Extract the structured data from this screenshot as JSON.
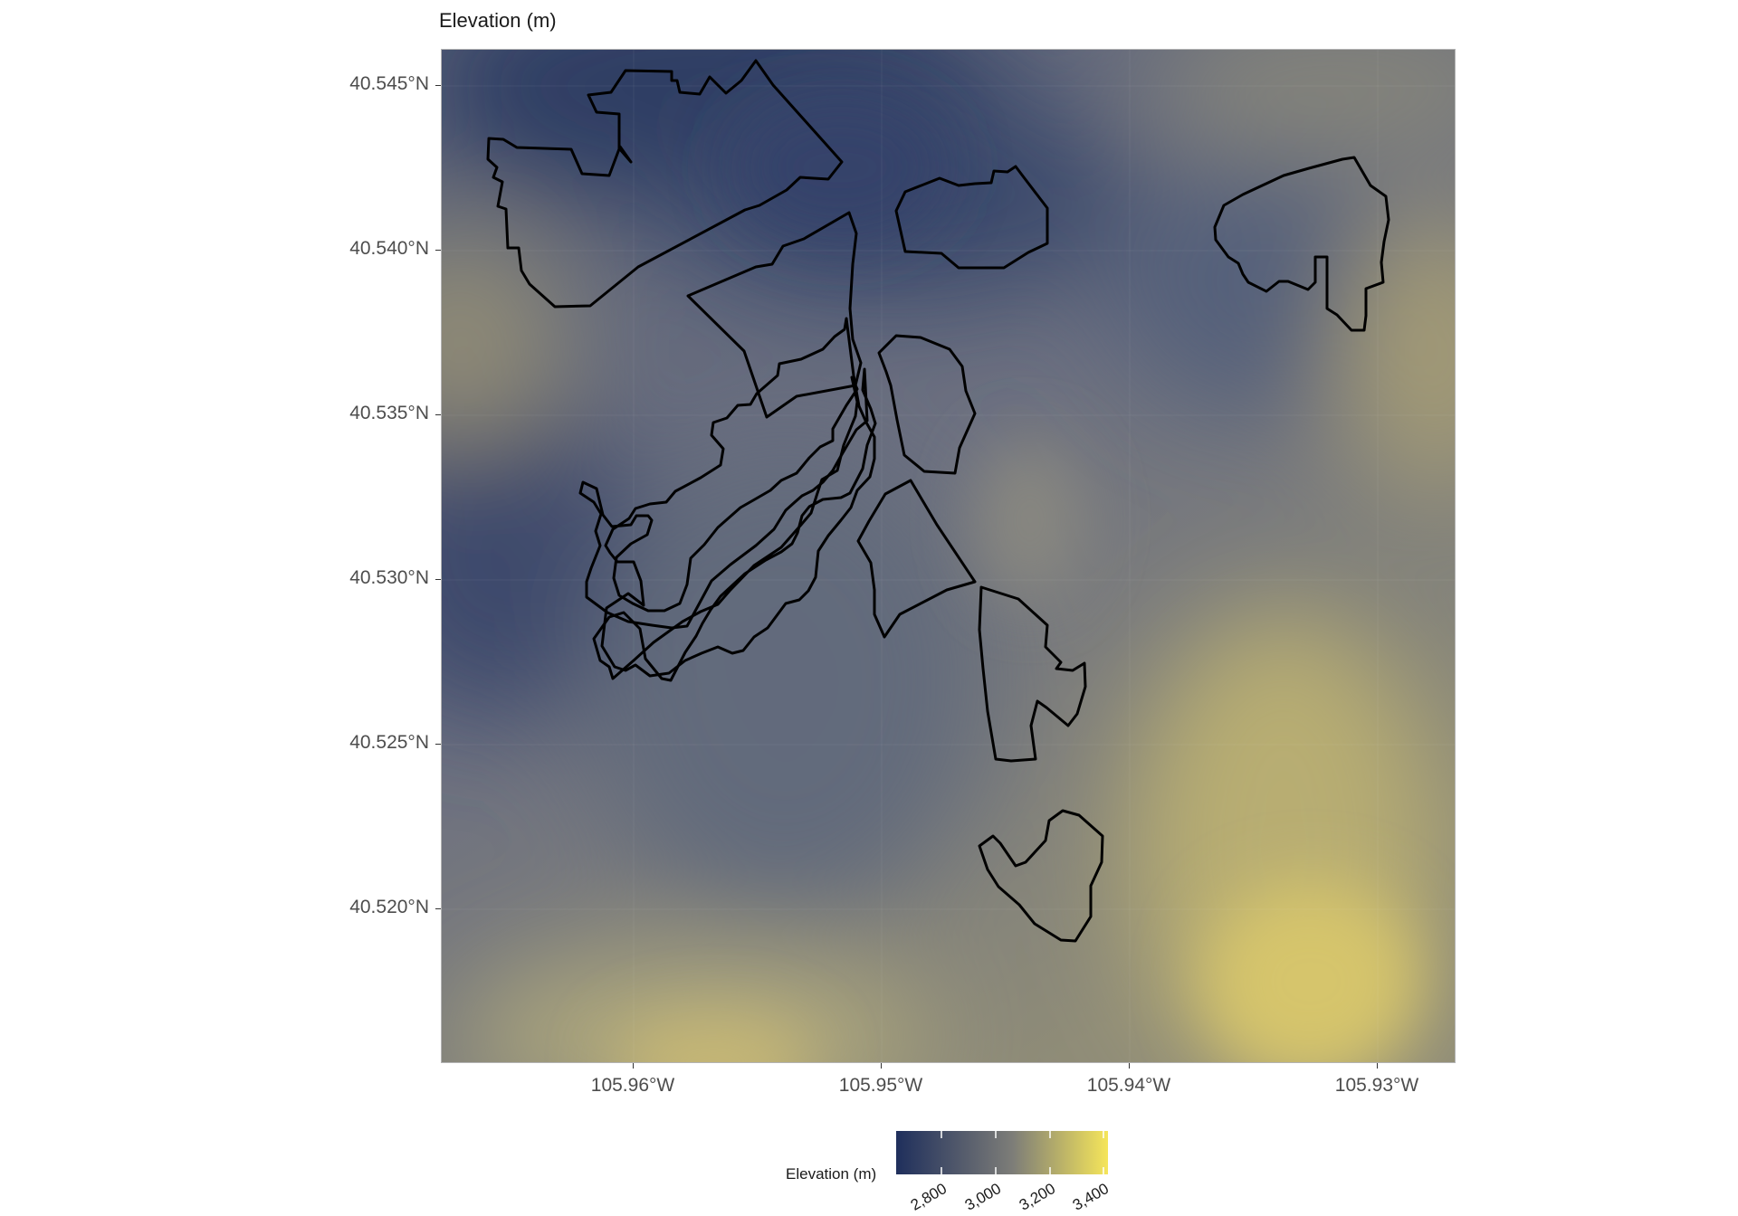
{
  "map": {
    "title": "Elevation (m)",
    "y_axis": {
      "ticks": [
        "40.545°N",
        "40.540°N",
        "40.535°N",
        "40.530°N",
        "40.525°N",
        "40.520°N"
      ]
    },
    "x_axis": {
      "ticks": [
        "105.96°W",
        "105.95°W",
        "105.94°W",
        "105.93°W"
      ]
    },
    "legend": {
      "title": "Elevation (m)",
      "labels": [
        "2,800",
        "3,000",
        "3,200",
        "3,400"
      ],
      "color_low": "#1f2f5c",
      "color_mid": "#7d7d78",
      "color_high": "#f5e55a"
    },
    "polygon_stroke_color": "#000000"
  }
}
